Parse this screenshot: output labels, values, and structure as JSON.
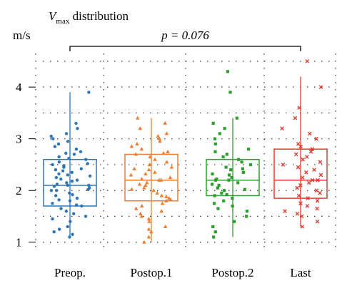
{
  "chart_data": {
    "type": "box",
    "title_main": "V",
    "title_sub": "max",
    "title_rest": " distribution",
    "ylabel": "m/s",
    "ylim": [
      0.9,
      4.65
    ],
    "y_ticks": [
      1,
      2,
      3,
      4
    ],
    "grid": true,
    "annotation": "p = 0.076",
    "annotation_spans": [
      "Preop.",
      "Last"
    ],
    "categories": [
      "Preop.",
      "Postop.1",
      "Postop.2",
      "Last"
    ],
    "series": [
      {
        "category": "Preop.",
        "color": "#2E75B6",
        "marker": "circle",
        "box": {
          "whisker_low": 1.1,
          "q1": 1.7,
          "median": 2.1,
          "q3": 2.6,
          "whisker_high": 3.9
        },
        "points": [
          1.1,
          1.15,
          1.2,
          1.25,
          1.3,
          1.4,
          1.45,
          1.5,
          1.55,
          1.6,
          1.65,
          1.7,
          1.72,
          1.75,
          1.8,
          1.82,
          1.85,
          1.9,
          1.92,
          1.95,
          2.0,
          2.0,
          2.02,
          2.05,
          2.08,
          2.1,
          2.1,
          2.12,
          2.15,
          2.18,
          2.2,
          2.22,
          2.25,
          2.28,
          2.3,
          2.32,
          2.35,
          2.38,
          2.4,
          2.42,
          2.45,
          2.48,
          2.5,
          2.52,
          2.55,
          2.6,
          2.62,
          2.65,
          2.7,
          2.72,
          2.75,
          2.8,
          2.85,
          2.9,
          2.95,
          3.0,
          3.05,
          3.1,
          3.2,
          3.3,
          3.9
        ]
      },
      {
        "category": "Postop.1",
        "color": "#ED7D31",
        "marker": "triangle",
        "box": {
          "whisker_low": 1.0,
          "q1": 1.8,
          "median": 2.2,
          "q3": 2.7,
          "whisker_high": 3.4
        },
        "points": [
          1.0,
          1.1,
          1.2,
          1.25,
          1.3,
          1.4,
          1.45,
          1.5,
          1.55,
          1.6,
          1.65,
          1.7,
          1.75,
          1.8,
          1.82,
          1.85,
          1.88,
          1.9,
          1.95,
          2.0,
          2.02,
          2.05,
          2.1,
          2.12,
          2.15,
          2.2,
          2.2,
          2.22,
          2.25,
          2.3,
          2.32,
          2.35,
          2.4,
          2.42,
          2.45,
          2.5,
          2.55,
          2.6,
          2.65,
          2.7,
          2.72,
          2.75,
          2.8,
          2.85,
          2.9,
          2.95,
          3.0,
          3.05,
          3.1,
          3.2,
          3.3,
          3.4
        ]
      },
      {
        "category": "Postop.2",
        "color": "#2CA02C",
        "marker": "square",
        "box": {
          "whisker_low": 1.1,
          "q1": 1.9,
          "median": 2.2,
          "q3": 2.6,
          "whisker_high": 3.4
        },
        "points": [
          1.1,
          1.2,
          1.3,
          1.4,
          1.5,
          1.6,
          1.65,
          1.7,
          1.75,
          1.8,
          1.85,
          1.9,
          1.92,
          1.95,
          2.0,
          2.02,
          2.05,
          2.1,
          2.12,
          2.15,
          2.2,
          2.2,
          2.22,
          2.25,
          2.3,
          2.32,
          2.35,
          2.4,
          2.42,
          2.45,
          2.5,
          2.55,
          2.6,
          2.65,
          2.7,
          2.75,
          2.8,
          2.9,
          3.0,
          3.1,
          3.2,
          3.3,
          3.4,
          3.9,
          4.3
        ]
      },
      {
        "category": "Last",
        "color": "#E03C31",
        "marker": "x",
        "box": {
          "whisker_low": 1.3,
          "q1": 1.85,
          "median": 2.2,
          "q3": 2.8,
          "whisker_high": 4.2
        },
        "points": [
          1.3,
          1.4,
          1.5,
          1.55,
          1.6,
          1.65,
          1.7,
          1.75,
          1.8,
          1.85,
          1.9,
          1.95,
          2.0,
          2.05,
          2.1,
          2.15,
          2.2,
          2.2,
          2.25,
          2.3,
          2.35,
          2.4,
          2.45,
          2.5,
          2.55,
          2.6,
          2.65,
          2.7,
          2.75,
          2.8,
          2.85,
          2.9,
          3.0,
          3.1,
          3.2,
          3.4,
          3.6,
          4.0,
          4.5
        ]
      }
    ]
  }
}
